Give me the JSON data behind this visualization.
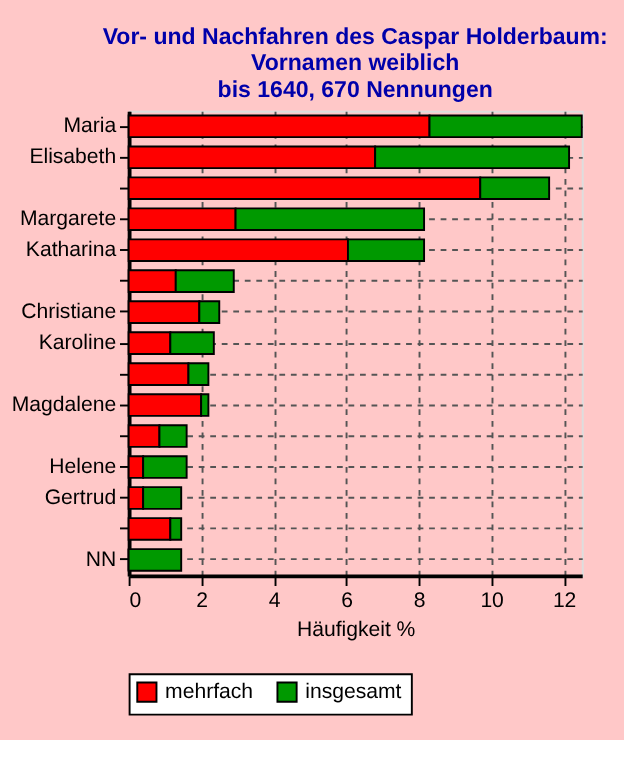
{
  "chart_data": {
    "type": "bar",
    "orientation": "horizontal",
    "stacked": true,
    "title": "Vor- und Nachfahren des Caspar Holderbaum:\nVornamen weiblich\nbis 1640, 670 Nennungen",
    "xlabel": "Häufigkeit %",
    "categories": [
      "Maria",
      "Elisabeth",
      null,
      "Margarete",
      "Katharina",
      null,
      "Christiane",
      "Karoline",
      null,
      "Magdalene",
      null,
      "Helene",
      "Gertrud",
      null,
      "NN"
    ],
    "series": [
      {
        "name": "mehrfach",
        "color": "#ff0000",
        "values": [
          8.3,
          6.8,
          9.7,
          2.95,
          6.05,
          1.3,
          1.95,
          1.15,
          1.65,
          2.0,
          0.85,
          0.4,
          0.4,
          1.15,
          0
        ]
      },
      {
        "name": "insgesamt",
        "color": "#009900",
        "values": [
          4.2,
          5.35,
          1.9,
          5.2,
          2.1,
          1.6,
          0.55,
          1.2,
          0.55,
          0.2,
          0.75,
          1.2,
          1.05,
          0.3,
          1.45
        ]
      }
    ],
    "xlim": [
      0,
      12.5
    ],
    "xticks": [
      0,
      2,
      4,
      6,
      8,
      10,
      12
    ],
    "grid": true,
    "legend": "bottom"
  }
}
